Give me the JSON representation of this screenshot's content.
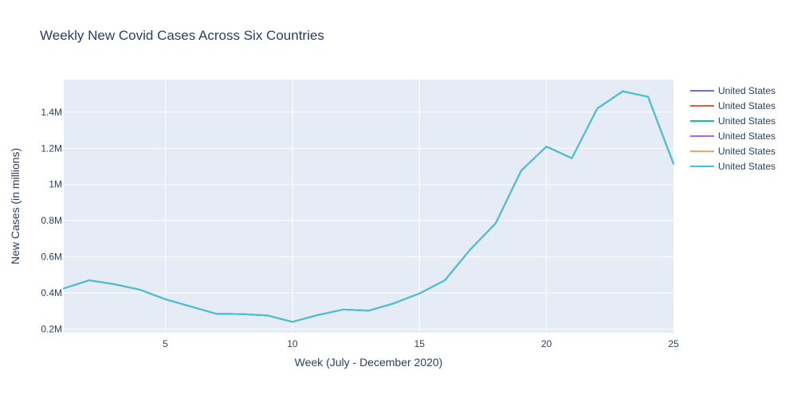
{
  "chart_data": {
    "type": "line",
    "title": "Weekly New Covid Cases Across Six Countries",
    "xlabel": "Week (July - December 2020)",
    "ylabel": "New Cases (in millions)",
    "xlim": [
      1,
      25
    ],
    "ylim": [
      0.18,
      1.58
    ],
    "x_ticks": [
      5,
      10,
      15,
      20,
      25
    ],
    "x_tick_labels": [
      "5",
      "10",
      "15",
      "20",
      "25"
    ],
    "y_ticks": [
      0.2,
      0.4,
      0.6,
      0.8,
      1.0,
      1.2,
      1.4
    ],
    "y_tick_labels": [
      "0.2M",
      "0.4M",
      "0.6M",
      "0.8M",
      "1M",
      "1.2M",
      "1.4M"
    ],
    "grid": true,
    "legend_position": "right",
    "x": [
      1,
      2,
      3,
      4,
      5,
      6,
      7,
      8,
      9,
      10,
      11,
      12,
      13,
      14,
      15,
      16,
      17,
      18,
      19,
      20,
      21,
      22,
      23,
      24,
      25
    ],
    "series": [
      {
        "name": "United States",
        "color": "#636efa",
        "values": [
          0.425,
          0.47,
          0.448,
          0.418,
          0.365,
          0.325,
          0.285,
          0.283,
          0.276,
          0.24,
          0.278,
          0.308,
          0.302,
          0.343,
          0.397,
          0.47,
          0.64,
          0.785,
          1.075,
          1.21,
          1.145,
          1.42,
          1.515,
          1.485,
          1.115
        ]
      },
      {
        "name": "United States",
        "color": "#ef553b",
        "values": [
          0.425,
          0.47,
          0.448,
          0.418,
          0.365,
          0.325,
          0.285,
          0.283,
          0.276,
          0.24,
          0.278,
          0.308,
          0.302,
          0.343,
          0.397,
          0.47,
          0.64,
          0.785,
          1.075,
          1.21,
          1.145,
          1.42,
          1.515,
          1.485,
          1.115
        ]
      },
      {
        "name": "United States",
        "color": "#00cc96",
        "values": [
          0.425,
          0.47,
          0.448,
          0.418,
          0.365,
          0.325,
          0.285,
          0.283,
          0.276,
          0.24,
          0.278,
          0.308,
          0.302,
          0.343,
          0.397,
          0.47,
          0.64,
          0.785,
          1.075,
          1.21,
          1.145,
          1.42,
          1.515,
          1.485,
          1.115
        ]
      },
      {
        "name": "United States",
        "color": "#ab63fa",
        "values": [
          0.425,
          0.47,
          0.448,
          0.418,
          0.365,
          0.325,
          0.285,
          0.283,
          0.276,
          0.24,
          0.278,
          0.308,
          0.302,
          0.343,
          0.397,
          0.47,
          0.64,
          0.785,
          1.075,
          1.21,
          1.145,
          1.42,
          1.515,
          1.485,
          1.115
        ]
      },
      {
        "name": "United States",
        "color": "#ffa15a",
        "values": [
          0.425,
          0.47,
          0.448,
          0.418,
          0.365,
          0.325,
          0.285,
          0.283,
          0.276,
          0.24,
          0.278,
          0.308,
          0.302,
          0.343,
          0.397,
          0.47,
          0.64,
          0.785,
          1.075,
          1.21,
          1.145,
          1.42,
          1.515,
          1.485,
          1.115
        ]
      },
      {
        "name": "United States",
        "color": "#3fc5dd",
        "values": [
          0.425,
          0.47,
          0.448,
          0.418,
          0.365,
          0.325,
          0.285,
          0.283,
          0.276,
          0.24,
          0.278,
          0.308,
          0.302,
          0.343,
          0.397,
          0.47,
          0.64,
          0.785,
          1.075,
          1.21,
          1.145,
          1.42,
          1.515,
          1.485,
          1.115
        ]
      }
    ],
    "colors": {
      "plot_background": "#e5ecf6",
      "grid": "#ffffff",
      "text": "#2a3f5f"
    }
  }
}
